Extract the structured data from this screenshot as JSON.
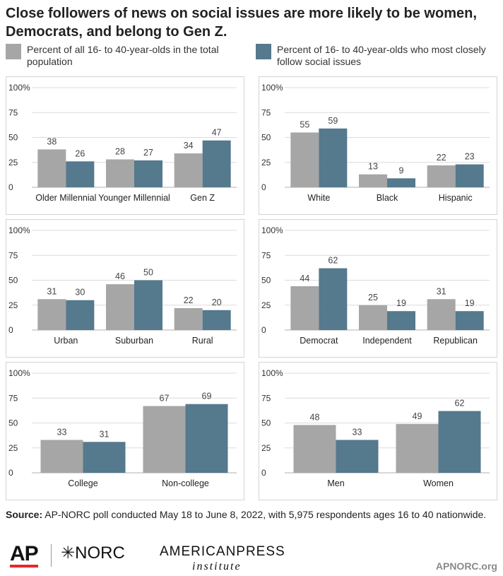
{
  "title": "Close followers of news on social issues are more likely to be women, Democrats, and belong to Gen Z.",
  "legend": [
    {
      "label": "Percent of all 16- to 40-year-olds in the total population",
      "color": "#a6a6a6"
    },
    {
      "label": "Percent of 16- to 40-year-olds who most closely follow social issues",
      "color": "#55798d"
    }
  ],
  "chart_data": [
    {
      "type": "bar",
      "categories": [
        "Older Millennial",
        "Younger Millennial",
        "Gen Z"
      ],
      "series": [
        {
          "name": "Percent of all 16- to 40-year-olds in the total population",
          "values": [
            38,
            28,
            34
          ]
        },
        {
          "name": "Percent of 16- to 40-year-olds who most closely follow social issues",
          "values": [
            26,
            27,
            47
          ]
        }
      ],
      "yticks": [
        "0",
        "25",
        "50",
        "75",
        "100%"
      ],
      "ylim": [
        0,
        100
      ]
    },
    {
      "type": "bar",
      "categories": [
        "White",
        "Black",
        "Hispanic"
      ],
      "series": [
        {
          "name": "Percent of all 16- to 40-year-olds in the total population",
          "values": [
            55,
            13,
            22
          ]
        },
        {
          "name": "Percent of 16- to 40-year-olds who most closely follow social issues",
          "values": [
            59,
            9,
            23
          ]
        }
      ],
      "yticks": [
        "0",
        "25",
        "50",
        "75",
        "100%"
      ],
      "ylim": [
        0,
        100
      ]
    },
    {
      "type": "bar",
      "categories": [
        "Urban",
        "Suburban",
        "Rural"
      ],
      "series": [
        {
          "name": "Percent of all 16- to 40-year-olds in the total population",
          "values": [
            31,
            46,
            22
          ]
        },
        {
          "name": "Percent of 16- to 40-year-olds who most closely follow social issues",
          "values": [
            30,
            50,
            20
          ]
        }
      ],
      "yticks": [
        "0",
        "25",
        "50",
        "75",
        "100%"
      ],
      "ylim": [
        0,
        100
      ]
    },
    {
      "type": "bar",
      "categories": [
        "Democrat",
        "Independent",
        "Republican"
      ],
      "series": [
        {
          "name": "Percent of all 16- to 40-year-olds in the total population",
          "values": [
            44,
            25,
            31
          ]
        },
        {
          "name": "Percent of 16- to 40-year-olds who most closely follow social issues",
          "values": [
            62,
            19,
            19
          ]
        }
      ],
      "yticks": [
        "0",
        "25",
        "50",
        "75",
        "100%"
      ],
      "ylim": [
        0,
        100
      ]
    },
    {
      "type": "bar",
      "categories": [
        "College",
        "Non-college"
      ],
      "series": [
        {
          "name": "Percent of all 16- to 40-year-olds in the total population",
          "values": [
            33,
            67
          ]
        },
        {
          "name": "Percent of 16- to 40-year-olds who most closely follow social issues",
          "values": [
            31,
            69
          ]
        }
      ],
      "yticks": [
        "0",
        "25",
        "50",
        "75",
        "100%"
      ],
      "ylim": [
        0,
        100
      ]
    },
    {
      "type": "bar",
      "categories": [
        "Men",
        "Women"
      ],
      "series": [
        {
          "name": "Percent of all 16- to 40-year-olds in the total population",
          "values": [
            48,
            49
          ]
        },
        {
          "name": "Percent of 16- to 40-year-olds who most closely follow social issues",
          "values": [
            33,
            62
          ]
        }
      ],
      "yticks": [
        "0",
        "25",
        "50",
        "75",
        "100%"
      ],
      "ylim": [
        0,
        100
      ]
    }
  ],
  "source": {
    "label": "Source:",
    "text": "AP-NORC poll conducted May 18 to June 8, 2022, with 5,975 respondents ages 16 to 40 nationwide."
  },
  "logos": {
    "ap": "AP",
    "norc": "✳NORC",
    "api_line1": "AMERICANPRESS",
    "api_line2": "institute"
  },
  "site": "APNORC.org"
}
